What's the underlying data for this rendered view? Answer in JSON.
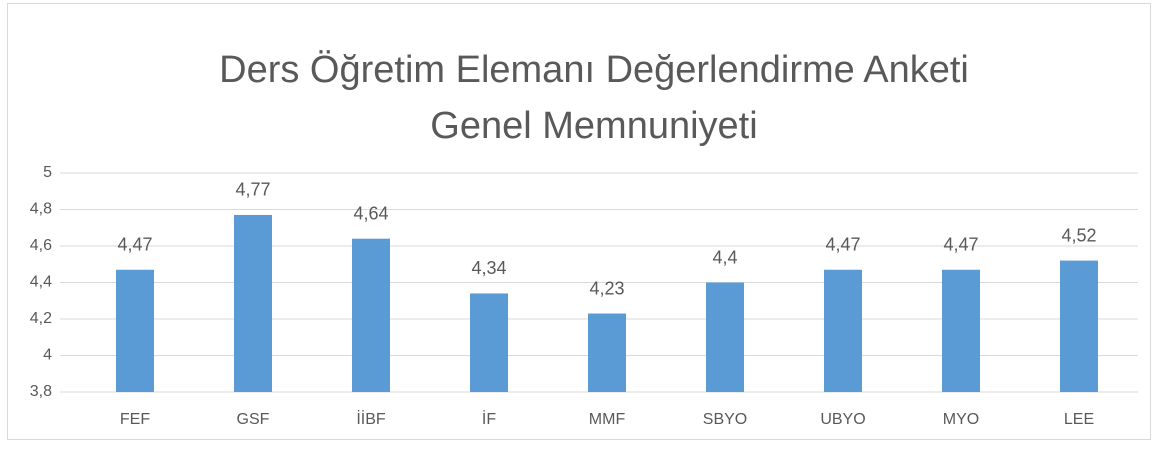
{
  "chart_data": {
    "type": "bar",
    "title": [
      "Ders Öğretim Elemanı Değerlendirme Anketi",
      "Genel Memnuniyeti"
    ],
    "categories": [
      "FEF",
      "GSF",
      "İİBF",
      "İF",
      "MMF",
      "SBYO",
      "UBYO",
      "MYO",
      "LEE"
    ],
    "values": [
      4.47,
      4.77,
      4.64,
      4.34,
      4.23,
      4.4,
      4.47,
      4.47,
      4.52
    ],
    "value_labels": [
      "4,47",
      "4,77",
      "4,64",
      "4,34",
      "4,23",
      "4,4",
      "4,47",
      "4,47",
      "4,52"
    ],
    "color": "#5b9bd5",
    "ylim": [
      3.8,
      5
    ],
    "yticks": [
      {
        "value": 3.8,
        "label": "3,8"
      },
      4,
      {
        "value": 4.2,
        "label": "4,2"
      },
      {
        "value": 4.4,
        "label": "4,4"
      },
      {
        "value": 4.6,
        "label": "4,6"
      },
      {
        "value": 4.8,
        "label": "4,8"
      },
      5
    ],
    "grid": true
  }
}
